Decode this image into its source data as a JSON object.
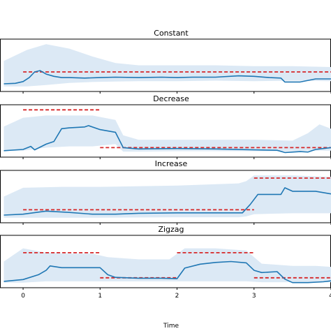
{
  "chart_data": [
    {
      "type": "line",
      "title": "Constant",
      "xlim": [
        -0.3,
        4.0
      ],
      "ylim": [
        0,
        1
      ],
      "grid": false,
      "series": [
        {
          "kind": "band",
          "color": "#dce9f5",
          "x": [
            -0.25,
            0.05,
            0.3,
            0.6,
            0.9,
            1.2,
            1.5,
            2.0,
            2.5,
            3.0,
            3.5,
            4.0
          ],
          "lower": [
            0.02,
            0.02,
            0.05,
            0.1,
            0.12,
            0.13,
            0.14,
            0.14,
            0.15,
            0.14,
            0.15,
            0.14
          ],
          "upper": [
            0.6,
            0.85,
            0.98,
            0.88,
            0.7,
            0.55,
            0.5,
            0.5,
            0.5,
            0.48,
            0.48,
            0.46
          ]
        },
        {
          "kind": "line",
          "color": "#1f77b4",
          "x": [
            -0.25,
            -0.1,
            0.0,
            0.08,
            0.15,
            0.22,
            0.3,
            0.4,
            0.5,
            0.6,
            0.8,
            1.0,
            1.2,
            1.5,
            1.8,
            2.0,
            2.2,
            2.5,
            2.8,
            3.0,
            3.2,
            3.35,
            3.4,
            3.6,
            3.8,
            4.0
          ],
          "y": [
            0.08,
            0.09,
            0.13,
            0.22,
            0.35,
            0.38,
            0.3,
            0.25,
            0.22,
            0.22,
            0.21,
            0.22,
            0.23,
            0.22,
            0.23,
            0.22,
            0.23,
            0.23,
            0.26,
            0.25,
            0.22,
            0.21,
            0.12,
            0.12,
            0.19,
            0.19
          ]
        },
        {
          "kind": "ground-truth",
          "color": "#d62728",
          "segments": [
            {
              "x": [
                0.0,
                4.0
              ],
              "y": 0.35
            }
          ]
        }
      ]
    },
    {
      "type": "line",
      "title": "Decrease",
      "xlim": [
        -0.3,
        4.0
      ],
      "ylim": [
        0,
        1
      ],
      "grid": false,
      "series": [
        {
          "kind": "band",
          "color": "#dce9f5",
          "x": [
            -0.25,
            0.0,
            0.3,
            0.6,
            0.9,
            1.2,
            1.3,
            1.5,
            2.0,
            2.5,
            3.0,
            3.5,
            3.7,
            3.85,
            4.0
          ],
          "lower": [
            0.05,
            0.05,
            0.12,
            0.15,
            0.15,
            0.2,
            0.03,
            0.03,
            0.04,
            0.04,
            0.04,
            0.04,
            0.05,
            0.05,
            0.05
          ],
          "upper": [
            0.6,
            0.8,
            0.85,
            0.85,
            0.85,
            0.75,
            0.4,
            0.3,
            0.3,
            0.3,
            0.3,
            0.28,
            0.45,
            0.65,
            0.55
          ]
        },
        {
          "kind": "line",
          "color": "#1f77b4",
          "x": [
            -0.25,
            0.0,
            0.1,
            0.15,
            0.3,
            0.4,
            0.5,
            0.6,
            0.8,
            0.85,
            1.0,
            1.2,
            1.3,
            1.5,
            2.0,
            2.5,
            3.0,
            3.3,
            3.4,
            3.6,
            3.7,
            3.8,
            3.9,
            4.0
          ],
          "y": [
            0.05,
            0.08,
            0.15,
            0.07,
            0.2,
            0.26,
            0.55,
            0.57,
            0.59,
            0.62,
            0.53,
            0.47,
            0.12,
            0.09,
            0.1,
            0.09,
            0.07,
            0.06,
            0.01,
            0.03,
            0.02,
            0.08,
            0.1,
            0.12
          ]
        },
        {
          "kind": "ground-truth",
          "color": "#d62728",
          "segments": [
            {
              "x": [
                0.0,
                1.0
              ],
              "y": 0.98
            },
            {
              "x": [
                1.0,
                4.0
              ],
              "y": 0.12
            }
          ]
        }
      ]
    },
    {
      "type": "line",
      "title": "Increase",
      "xlim": [
        -0.3,
        4.0
      ],
      "ylim": [
        0,
        1
      ],
      "grid": false,
      "series": [
        {
          "kind": "band",
          "color": "#dce9f5",
          "x": [
            -0.25,
            0.0,
            0.5,
            1.0,
            2.0,
            2.8,
            2.9,
            3.0,
            3.5,
            4.0
          ],
          "lower": [
            0.02,
            0.02,
            0.02,
            0.02,
            0.03,
            0.03,
            0.05,
            0.1,
            0.12,
            0.12
          ],
          "upper": [
            0.5,
            0.7,
            0.72,
            0.72,
            0.75,
            0.8,
            0.85,
            0.98,
            0.98,
            0.95
          ]
        },
        {
          "kind": "line",
          "color": "#1f77b4",
          "x": [
            -0.25,
            0.0,
            0.3,
            0.6,
            0.9,
            1.2,
            1.5,
            2.0,
            2.5,
            2.85,
            2.95,
            3.05,
            3.35,
            3.4,
            3.5,
            3.6,
            3.8,
            4.0
          ],
          "y": [
            0.08,
            0.1,
            0.17,
            0.14,
            0.1,
            0.1,
            0.12,
            0.13,
            0.13,
            0.13,
            0.32,
            0.55,
            0.55,
            0.7,
            0.62,
            0.62,
            0.62,
            0.56
          ]
        },
        {
          "kind": "ground-truth",
          "color": "#d62728",
          "segments": [
            {
              "x": [
                0.0,
                3.0
              ],
              "y": 0.2
            },
            {
              "x": [
                3.0,
                4.0
              ],
              "y": 0.92
            }
          ]
        }
      ]
    },
    {
      "type": "line",
      "title": "Zigzag",
      "xlim": [
        -0.3,
        4.0
      ],
      "ylim": [
        0,
        1
      ],
      "grid": false,
      "series": [
        {
          "kind": "band",
          "color": "#dce9f5",
          "x": [
            -0.25,
            0.0,
            0.3,
            0.6,
            0.9,
            1.1,
            1.5,
            1.9,
            2.1,
            2.5,
            2.9,
            3.1,
            3.5,
            3.8,
            4.0
          ],
          "lower": [
            0.02,
            0.02,
            0.05,
            0.05,
            0.05,
            0.05,
            0.05,
            0.05,
            0.05,
            0.05,
            0.05,
            0.03,
            0.03,
            0.03,
            0.03
          ],
          "upper": [
            0.5,
            0.8,
            0.7,
            0.68,
            0.68,
            0.6,
            0.55,
            0.55,
            0.8,
            0.8,
            0.75,
            0.45,
            0.4,
            0.4,
            0.38
          ]
        },
        {
          "kind": "line",
          "color": "#1f77b4",
          "x": [
            -0.25,
            0.0,
            0.2,
            0.3,
            0.35,
            0.5,
            0.8,
            1.0,
            1.1,
            1.2,
            1.5,
            1.8,
            2.0,
            2.1,
            2.3,
            2.5,
            2.7,
            2.9,
            3.0,
            3.1,
            3.3,
            3.4,
            3.5,
            3.7,
            3.9,
            4.0
          ],
          "y": [
            0.05,
            0.09,
            0.2,
            0.3,
            0.4,
            0.36,
            0.36,
            0.36,
            0.2,
            0.14,
            0.12,
            0.12,
            0.11,
            0.35,
            0.44,
            0.48,
            0.5,
            0.47,
            0.3,
            0.25,
            0.27,
            0.1,
            0.02,
            0.02,
            0.04,
            0.06
          ]
        },
        {
          "kind": "ground-truth",
          "color": "#d62728",
          "segments": [
            {
              "x": [
                0.0,
                1.0
              ],
              "y": 0.7
            },
            {
              "x": [
                1.0,
                2.0
              ],
              "y": 0.13
            },
            {
              "x": [
                2.0,
                3.0
              ],
              "y": 0.7
            },
            {
              "x": [
                3.0,
                4.0
              ],
              "y": 0.13
            }
          ]
        }
      ]
    }
  ],
  "x_axis": {
    "label": "Time",
    "ticks": [
      0,
      1,
      2,
      3,
      4
    ],
    "tick_labels": [
      "0",
      "1",
      "2",
      "3",
      "4"
    ]
  }
}
